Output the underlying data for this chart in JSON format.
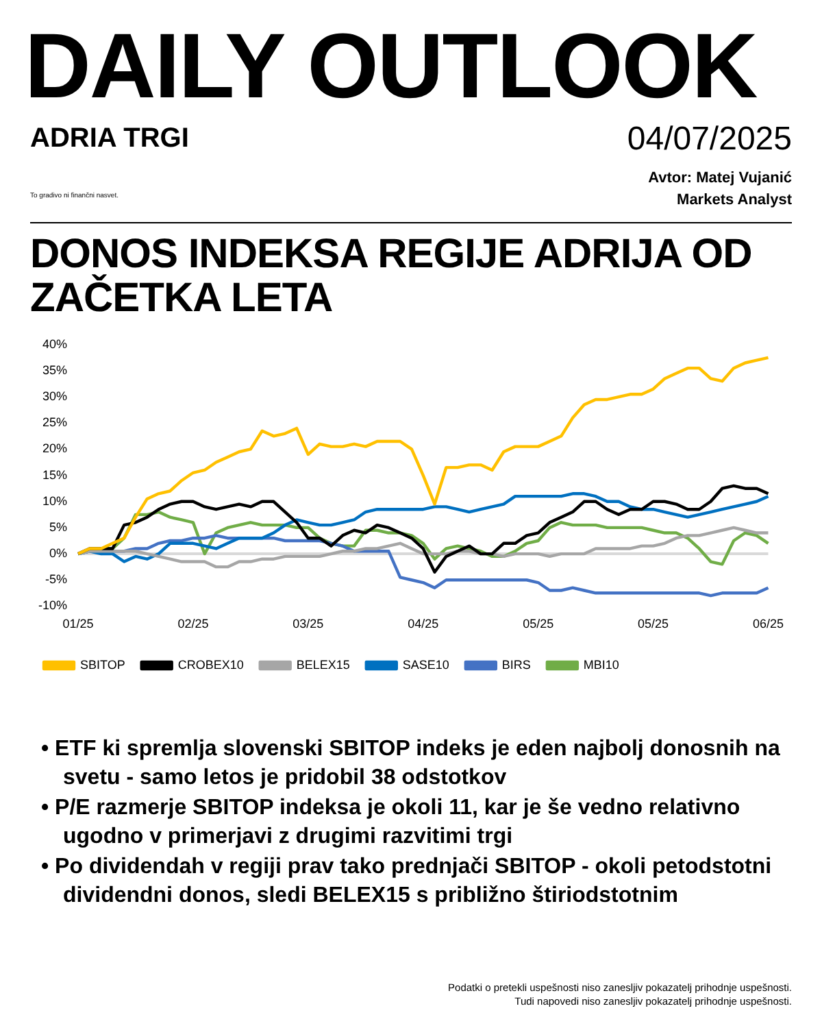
{
  "chart_data": {
    "type": "line",
    "title": "DONOS INDEKSA REGIJE ADRIJA OD ZAČETKA LETA",
    "annotations": [
      "DAILY OUTLOOK",
      "ADRIA TRGI",
      "To gradivo ni finančni nasvet.",
      "04/07/2025",
      "Avtor: Matej Vujanić",
      "Markets Analyst",
      "• ETF ki spremlja slovenski SBITOP indeks je eden najbolj donosnih na svetu - samo letos je pridobil 38 odstotkov",
      "• P/E razmerje SBITOP indeksa je okoli 11, kar je še vedno relativno ugodno v primerjavi z drugimi razvitimi trgi",
      "• Po dividendah v regiji prav tako prednjači SBITOP - okoli petodstotni dividendni donos, sledi BELEX15 s približno štiriodstotnim",
      "Podatki o pretekli uspešnosti niso zanesljiv pokazatelj prihodnje uspešnosti.",
      "Tudi napovedi niso zanesljiv pokazatelj prihodnje uspešnosti."
    ],
    "categories": [
      "01/25",
      null,
      null,
      null,
      null,
      null,
      null,
      null,
      null,
      null,
      "02/25",
      null,
      null,
      null,
      null,
      null,
      null,
      null,
      null,
      null,
      "03/25",
      null,
      null,
      null,
      null,
      null,
      null,
      null,
      null,
      null,
      "04/25",
      null,
      null,
      null,
      null,
      null,
      null,
      null,
      null,
      null,
      "05/25",
      null,
      null,
      null,
      null,
      null,
      null,
      null,
      null,
      null,
      "05/25",
      null,
      null,
      null,
      null,
      null,
      null,
      null,
      null,
      null,
      "06/25"
    ],
    "series": [
      {
        "name": "SBITOP",
        "color": "#ffc000",
        "values": [
          0,
          1,
          1,
          2,
          3,
          7,
          10.5,
          11.5,
          12,
          14,
          15.5,
          16,
          17.5,
          18.5,
          19.5,
          20,
          23.5,
          22.5,
          23,
          24,
          19,
          21,
          20.5,
          20.5,
          21,
          20.5,
          21.5,
          21.5,
          21.5,
          20,
          15,
          9.5,
          16.5,
          16.5,
          17,
          17,
          16,
          19.5,
          20.5,
          20.5,
          20.5,
          21.5,
          22.5,
          26,
          28.5,
          29.5,
          29.5,
          30,
          30.5,
          30.5,
          31.5,
          33.5,
          34.5,
          35.5,
          35.5,
          33.5,
          33,
          35.5,
          36.5,
          37,
          37.5
        ]
      },
      {
        "name": "CROBEX10",
        "color": "#000000",
        "values": [
          0,
          1,
          1,
          1,
          5.5,
          6,
          7,
          8.5,
          9.5,
          10,
          10,
          9,
          8.5,
          9,
          9.5,
          9,
          10,
          10,
          8,
          6,
          3,
          3,
          1.5,
          3.5,
          4.5,
          4,
          5.5,
          5,
          4,
          3,
          1,
          -3.5,
          -0.5,
          0.5,
          1.5,
          0,
          0,
          2,
          2,
          3.5,
          4,
          6,
          7,
          8,
          10,
          10,
          8.5,
          7.5,
          8.5,
          8.5,
          10,
          10,
          9.5,
          8.5,
          8.5,
          10,
          12.5,
          13,
          12.5,
          12.5,
          11.5
        ]
      },
      {
        "name": "BELEX15",
        "color": "#a6a6a6",
        "values": [
          0,
          0.5,
          0.5,
          0.5,
          0.5,
          0.5,
          0,
          -0.5,
          -1,
          -1.5,
          -1.5,
          -1.5,
          -2.5,
          -2.5,
          -1.5,
          -1.5,
          -1,
          -1,
          -0.5,
          -0.5,
          -0.5,
          -0.5,
          0,
          0.5,
          0.5,
          1,
          1,
          1.5,
          2,
          1,
          0,
          0,
          0,
          0.5,
          0.5,
          0,
          0,
          -0.5,
          0,
          0,
          0,
          -0.5,
          0,
          0,
          0,
          1,
          1,
          1,
          1,
          1.5,
          1.5,
          2,
          3,
          3.5,
          3.5,
          4,
          4.5,
          5,
          4.5,
          4,
          4
        ]
      },
      {
        "name": "SASE10",
        "color": "#0070c0",
        "values": [
          0,
          0.5,
          0,
          0,
          -1.5,
          -0.5,
          -1,
          0,
          2,
          2,
          2,
          1.5,
          1,
          2,
          3,
          3,
          3,
          4,
          5.5,
          6.5,
          6,
          5.5,
          5.5,
          6,
          6.5,
          8,
          8.5,
          8.5,
          8.5,
          8.5,
          8.5,
          9,
          9,
          8.5,
          8,
          8.5,
          9,
          9.5,
          11,
          11,
          11,
          11,
          11,
          11.5,
          11.5,
          11,
          10,
          10,
          9,
          8.5,
          8.5,
          8,
          7.5,
          7,
          7.5,
          8,
          8.5,
          9,
          9.5,
          10,
          11
        ]
      },
      {
        "name": "BIRS",
        "color": "#4472c4",
        "values": [
          0,
          0.5,
          0.5,
          0.5,
          0.5,
          1,
          1,
          2,
          2.5,
          2.5,
          3,
          3,
          3.5,
          3,
          3,
          3,
          3,
          3,
          2.5,
          2.5,
          2.5,
          2.5,
          2,
          1.5,
          0.5,
          0.5,
          0.5,
          0.5,
          -4.5,
          -5,
          -5.5,
          -6.5,
          -5,
          -5,
          -5,
          -5,
          -5,
          -5,
          -5,
          -5,
          -5.5,
          -7,
          -7,
          -6.5,
          -7,
          -7.5,
          -7.5,
          -7.5,
          -7.5,
          -7.5,
          -7.5,
          -7.5,
          -7.5,
          -7.5,
          -7.5,
          -8,
          -7.5,
          -7.5,
          -7.5,
          -7.5,
          -6.5
        ]
      },
      {
        "name": "MBI10",
        "color": "#70ad47",
        "values": [
          0,
          0.5,
          1,
          1,
          3,
          7.5,
          7.5,
          8,
          7,
          6.5,
          6,
          0,
          4,
          5,
          5.5,
          6,
          5.5,
          5.5,
          5.5,
          5,
          5,
          3,
          2,
          1.5,
          1.5,
          4.5,
          4.5,
          4,
          4,
          3.5,
          2,
          -1,
          1,
          1.5,
          1,
          0.5,
          -0.5,
          -0.5,
          0.5,
          2,
          2.5,
          5,
          6,
          5.5,
          5.5,
          5.5,
          5,
          5,
          5,
          5,
          4.5,
          4,
          4,
          3,
          1,
          -1.5,
          -2,
          2.5,
          4,
          3.5,
          2
        ]
      }
    ],
    "ylim": [
      -10,
      40
    ],
    "yticks": [
      {
        "value": -10,
        "label": "-10%"
      },
      {
        "value": -5,
        "label": "-5%"
      },
      {
        "value": 0,
        "label": "0%"
      },
      {
        "value": 5,
        "label": "5%"
      },
      {
        "value": 10,
        "label": "10%"
      },
      {
        "value": 15,
        "label": "15%"
      },
      {
        "value": 20,
        "label": "20%"
      },
      {
        "value": 25,
        "label": "25%"
      },
      {
        "value": 30,
        "label": "30%"
      },
      {
        "value": 35,
        "label": "35%"
      },
      {
        "value": 40,
        "label": "40%"
      }
    ],
    "ref_lines": [
      {
        "axis": "y",
        "value": 0,
        "color": "#d9d9d9"
      }
    ],
    "grid": false,
    "legend": "bottom",
    "marker": "none",
    "line_style": "solid"
  }
}
